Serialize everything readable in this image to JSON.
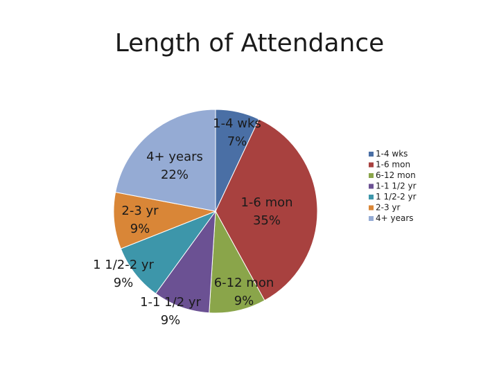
{
  "chart_data": {
    "type": "pie",
    "title": "Length of Attendance",
    "categories": [
      "1-4 wks",
      "1-6 mon",
      "6-12 mon",
      "1-1 1/2 yr",
      "1 1/2-2 yr",
      "2-3 yr",
      "4+ years"
    ],
    "values": [
      7,
      35,
      9,
      9,
      9,
      9,
      22
    ],
    "data_labels": [
      "7%",
      "35%",
      "9%",
      "9%",
      "9%",
      "9%",
      "22%"
    ],
    "colors": [
      "#4a6fa5",
      "#a8413f",
      "#8aa54a",
      "#6b5193",
      "#3d96aa",
      "#d98637",
      "#95abd4"
    ],
    "legend": "right",
    "start_angle": 0,
    "direction": "clockwise"
  }
}
